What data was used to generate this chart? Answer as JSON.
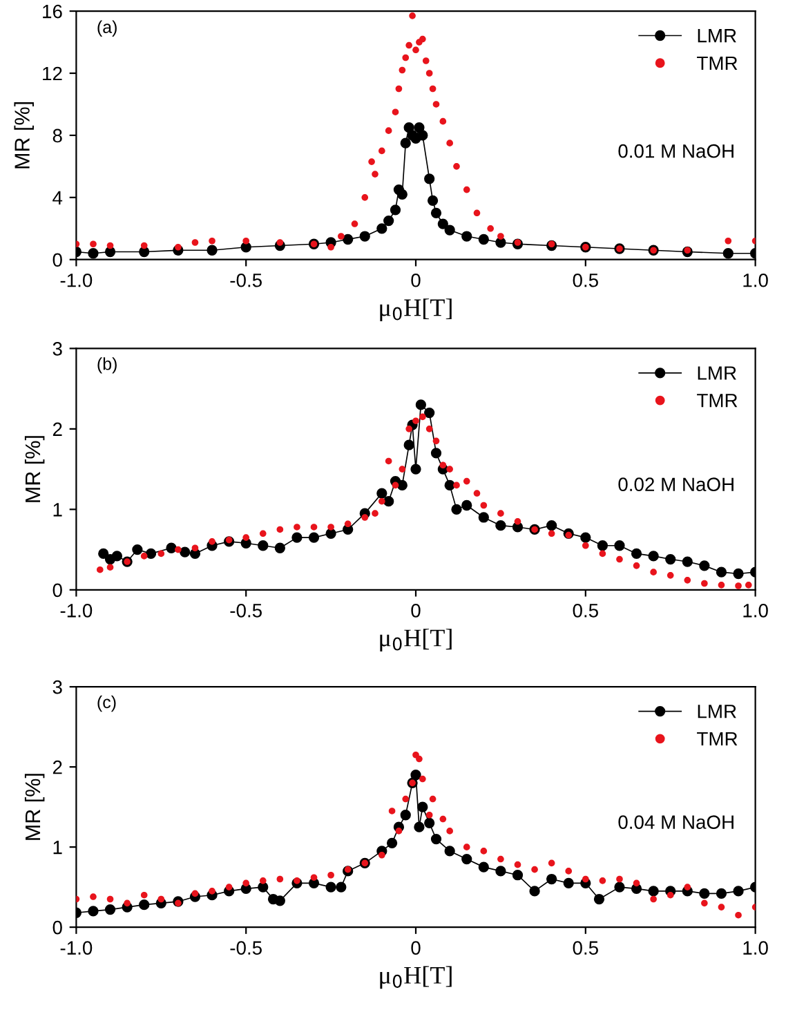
{
  "chart_data": [
    {
      "type": "line",
      "xlabel": "μ$_{0}$H[T]",
      "ylabel": "MR [%]",
      "annotations": [
        "(a)",
        "0.01 M NaOH"
      ],
      "xlim": [
        -1,
        1
      ],
      "xticks": [
        {
          "value": -1,
          "label": "-1.0"
        },
        {
          "value": -0.5,
          "label": "-0.5"
        },
        0,
        {
          "value": 0.5,
          "label": "0.5"
        },
        {
          "value": 1,
          "label": "1.0"
        }
      ],
      "ylim": [
        0,
        16
      ],
      "yticks": [
        0,
        4,
        8,
        12,
        16
      ],
      "grid": false,
      "legend": "top right",
      "series": [
        {
          "name": "LMR",
          "marker": "circle",
          "color": "#000000",
          "x": [
            -1.0,
            -0.95,
            -0.9,
            -0.8,
            -0.7,
            -0.6,
            -0.5,
            -0.4,
            -0.3,
            -0.25,
            -0.2,
            -0.15,
            -0.1,
            -0.08,
            -0.06,
            -0.05,
            -0.04,
            -0.03,
            -0.02,
            -0.01,
            0.0,
            0.01,
            0.02,
            0.04,
            0.05,
            0.06,
            0.08,
            0.1,
            0.15,
            0.2,
            0.25,
            0.3,
            0.4,
            0.5,
            0.6,
            0.7,
            0.8,
            0.92,
            1.0
          ],
          "values": [
            0.5,
            0.4,
            0.5,
            0.5,
            0.6,
            0.6,
            0.8,
            0.9,
            1.0,
            1.1,
            1.3,
            1.5,
            2.0,
            2.5,
            3.2,
            4.5,
            4.2,
            7.5,
            8.5,
            8.0,
            7.8,
            8.5,
            8.0,
            5.2,
            3.8,
            3.0,
            2.3,
            1.9,
            1.5,
            1.3,
            1.1,
            1.0,
            0.9,
            0.8,
            0.7,
            0.6,
            0.5,
            0.4,
            0.4
          ]
        },
        {
          "name": "TMR",
          "type": "scatter",
          "marker": "circle",
          "color": "#e8141c",
          "x": [
            -1.0,
            -0.95,
            -0.9,
            -0.8,
            -0.7,
            -0.65,
            -0.6,
            -0.5,
            -0.4,
            -0.3,
            -0.25,
            -0.22,
            -0.18,
            -0.15,
            -0.13,
            -0.12,
            -0.1,
            -0.08,
            -0.06,
            -0.05,
            -0.04,
            -0.03,
            -0.02,
            -0.01,
            0.0,
            0.01,
            0.02,
            0.03,
            0.04,
            0.05,
            0.06,
            0.08,
            0.1,
            0.12,
            0.15,
            0.18,
            0.22,
            0.25,
            0.3,
            0.4,
            0.5,
            0.6,
            0.7,
            0.8,
            0.92,
            1.0
          ],
          "values": [
            1.0,
            1.0,
            0.9,
            0.9,
            0.8,
            1.1,
            1.2,
            1.2,
            1.1,
            1.0,
            0.8,
            1.5,
            2.3,
            4.0,
            6.3,
            5.5,
            7.0,
            8.3,
            9.5,
            11.0,
            12.2,
            13.0,
            13.8,
            15.7,
            13.5,
            14.0,
            14.2,
            12.8,
            12.0,
            11.0,
            10.0,
            8.9,
            7.5,
            6.0,
            4.5,
            3.0,
            2.0,
            1.5,
            1.1,
            1.0,
            0.8,
            0.7,
            0.6,
            0.6,
            1.2,
            1.2
          ]
        }
      ]
    },
    {
      "type": "line",
      "xlabel": "μ$_{0}$H[T]",
      "ylabel": "MR [%]",
      "annotations": [
        "(b)",
        "0.02 M NaOH"
      ],
      "xlim": [
        -1,
        1
      ],
      "xticks": [
        {
          "value": -1,
          "label": "-1.0"
        },
        {
          "value": -0.5,
          "label": "-0.5"
        },
        0,
        {
          "value": 0.5,
          "label": "0.5"
        },
        {
          "value": 1,
          "label": "1.0"
        }
      ],
      "ylim": [
        0,
        3
      ],
      "yticks": [
        0,
        1,
        2,
        3
      ],
      "grid": false,
      "legend": "top right",
      "series": [
        {
          "name": "LMR",
          "marker": "circle",
          "color": "#000000",
          "x": [
            -0.92,
            -0.9,
            -0.88,
            -0.85,
            -0.82,
            -0.78,
            -0.72,
            -0.68,
            -0.65,
            -0.6,
            -0.55,
            -0.5,
            -0.45,
            -0.4,
            -0.35,
            -0.3,
            -0.25,
            -0.2,
            -0.15,
            -0.1,
            -0.08,
            -0.06,
            -0.04,
            -0.02,
            -0.01,
            0.0,
            0.015,
            0.04,
            0.06,
            0.08,
            0.1,
            0.12,
            0.15,
            0.2,
            0.25,
            0.3,
            0.35,
            0.4,
            0.45,
            0.5,
            0.55,
            0.6,
            0.65,
            0.7,
            0.75,
            0.8,
            0.85,
            0.9,
            0.95,
            1.0
          ],
          "values": [
            0.45,
            0.38,
            0.42,
            0.35,
            0.5,
            0.45,
            0.52,
            0.47,
            0.45,
            0.55,
            0.6,
            0.58,
            0.55,
            0.52,
            0.65,
            0.65,
            0.7,
            0.75,
            0.95,
            1.2,
            1.1,
            1.35,
            1.3,
            1.8,
            2.05,
            1.5,
            2.3,
            2.2,
            1.7,
            1.5,
            1.3,
            1.0,
            1.05,
            0.9,
            0.8,
            0.78,
            0.75,
            0.8,
            0.7,
            0.65,
            0.55,
            0.55,
            0.45,
            0.42,
            0.38,
            0.35,
            0.3,
            0.22,
            0.2,
            0.22
          ]
        },
        {
          "name": "TMR",
          "type": "scatter",
          "marker": "circle",
          "color": "#e8141c",
          "x": [
            -0.93,
            -0.9,
            -0.85,
            -0.8,
            -0.75,
            -0.7,
            -0.65,
            -0.6,
            -0.55,
            -0.5,
            -0.45,
            -0.4,
            -0.35,
            -0.3,
            -0.25,
            -0.2,
            -0.15,
            -0.12,
            -0.1,
            -0.08,
            -0.06,
            -0.04,
            -0.02,
            0.0,
            0.02,
            0.04,
            0.06,
            0.08,
            0.1,
            0.12,
            0.15,
            0.18,
            0.2,
            0.25,
            0.3,
            0.35,
            0.4,
            0.45,
            0.5,
            0.55,
            0.6,
            0.65,
            0.7,
            0.75,
            0.8,
            0.85,
            0.9,
            0.95,
            0.98
          ],
          "values": [
            0.25,
            0.28,
            0.35,
            0.42,
            0.45,
            0.5,
            0.52,
            0.6,
            0.62,
            0.65,
            0.7,
            0.75,
            0.78,
            0.78,
            0.78,
            0.82,
            0.9,
            0.95,
            1.1,
            1.6,
            1.3,
            1.5,
            2.0,
            2.1,
            2.15,
            2.0,
            1.85,
            1.55,
            1.5,
            1.3,
            1.35,
            1.2,
            1.05,
            0.95,
            0.85,
            0.75,
            0.7,
            0.68,
            0.55,
            0.45,
            0.38,
            0.3,
            0.22,
            0.18,
            0.12,
            0.08,
            0.06,
            0.05,
            0.06
          ]
        }
      ]
    },
    {
      "type": "line",
      "xlabel": "μ$_{0}$H[T]",
      "ylabel": "MR [%]",
      "annotations": [
        "(c)",
        "0.04 M NaOH"
      ],
      "xlim": [
        -1,
        1
      ],
      "xticks": [
        {
          "value": -1,
          "label": "-1.0"
        },
        {
          "value": -0.5,
          "label": "-0.5"
        },
        0,
        {
          "value": 0.5,
          "label": "0.5"
        },
        {
          "value": 1,
          "label": "1.0"
        }
      ],
      "ylim": [
        0,
        3
      ],
      "yticks": [
        0,
        1,
        2,
        3
      ],
      "grid": false,
      "legend": "top right",
      "series": [
        {
          "name": "LMR",
          "marker": "circle",
          "color": "#000000",
          "x": [
            -1.0,
            -0.95,
            -0.9,
            -0.85,
            -0.8,
            -0.75,
            -0.7,
            -0.65,
            -0.6,
            -0.55,
            -0.5,
            -0.45,
            -0.42,
            -0.4,
            -0.35,
            -0.3,
            -0.25,
            -0.22,
            -0.2,
            -0.15,
            -0.1,
            -0.07,
            -0.05,
            -0.03,
            -0.01,
            0.0,
            0.01,
            0.02,
            0.04,
            0.06,
            0.1,
            0.15,
            0.2,
            0.25,
            0.3,
            0.35,
            0.4,
            0.45,
            0.5,
            0.54,
            0.6,
            0.65,
            0.7,
            0.75,
            0.8,
            0.85,
            0.9,
            0.95,
            1.0
          ],
          "values": [
            0.18,
            0.2,
            0.22,
            0.25,
            0.28,
            0.3,
            0.32,
            0.38,
            0.4,
            0.45,
            0.48,
            0.5,
            0.35,
            0.33,
            0.55,
            0.55,
            0.5,
            0.5,
            0.7,
            0.8,
            0.95,
            1.05,
            1.25,
            1.4,
            1.8,
            1.9,
            1.25,
            1.5,
            1.3,
            1.1,
            0.95,
            0.85,
            0.75,
            0.7,
            0.65,
            0.45,
            0.6,
            0.55,
            0.55,
            0.35,
            0.5,
            0.48,
            0.45,
            0.45,
            0.45,
            0.42,
            0.42,
            0.45,
            0.5
          ]
        },
        {
          "name": "TMR",
          "type": "scatter",
          "marker": "circle",
          "color": "#e8141c",
          "x": [
            -1.0,
            -0.95,
            -0.9,
            -0.85,
            -0.8,
            -0.75,
            -0.7,
            -0.65,
            -0.6,
            -0.55,
            -0.5,
            -0.45,
            -0.4,
            -0.35,
            -0.3,
            -0.25,
            -0.2,
            -0.15,
            -0.1,
            -0.07,
            -0.05,
            -0.03,
            -0.01,
            0.0,
            0.01,
            0.02,
            0.04,
            0.05,
            0.08,
            0.1,
            0.15,
            0.2,
            0.25,
            0.3,
            0.35,
            0.4,
            0.45,
            0.5,
            0.55,
            0.6,
            0.65,
            0.7,
            0.75,
            0.8,
            0.85,
            0.9,
            0.95,
            1.0
          ],
          "values": [
            0.35,
            0.38,
            0.35,
            0.3,
            0.4,
            0.35,
            0.3,
            0.42,
            0.45,
            0.5,
            0.55,
            0.58,
            0.6,
            0.58,
            0.62,
            0.65,
            0.72,
            0.8,
            0.9,
            1.45,
            1.2,
            1.6,
            1.8,
            2.15,
            2.1,
            1.85,
            1.4,
            1.6,
            1.35,
            1.2,
            1.0,
            0.95,
            0.85,
            0.78,
            0.72,
            0.8,
            0.7,
            0.6,
            0.58,
            0.6,
            0.55,
            0.35,
            0.4,
            0.5,
            0.3,
            0.25,
            0.15,
            0.25
          ]
        }
      ]
    }
  ]
}
